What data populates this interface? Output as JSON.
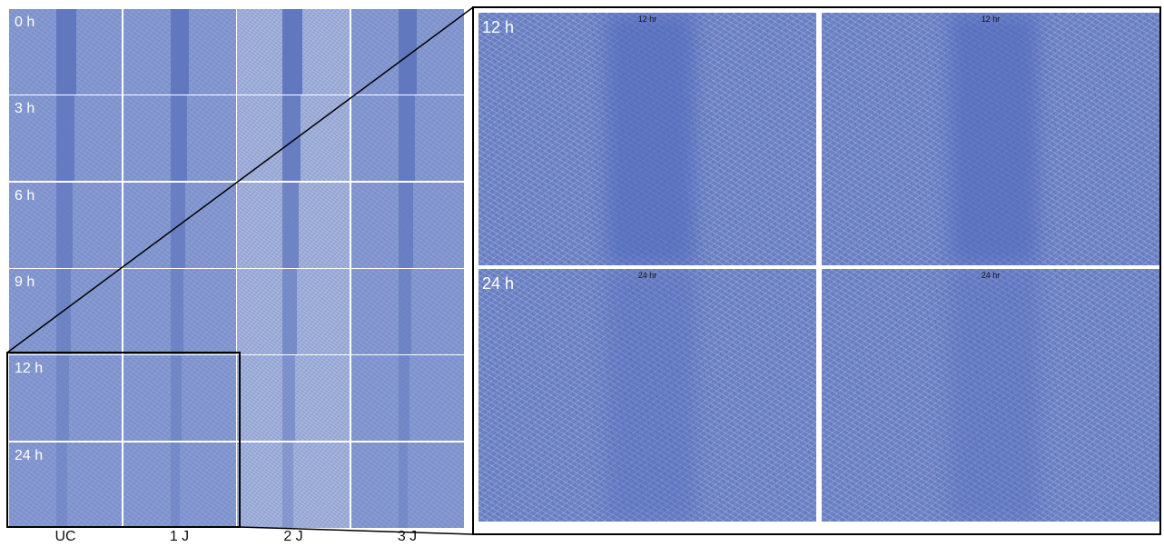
{
  "left_panel": {
    "row_labels": [
      "0 h",
      "3 h",
      "6 h",
      "9 h",
      "12 h",
      "24 h"
    ],
    "column_labels": [
      "UC",
      "1 J",
      "2 J",
      "3 J"
    ]
  },
  "right_panel": {
    "rows": [
      {
        "label": "12 h",
        "images": [
          {
            "caption": "12 hr"
          },
          {
            "caption": "12 hr"
          }
        ]
      },
      {
        "label": "24 h",
        "images": [
          {
            "caption": "24 hr"
          },
          {
            "caption": "24 hr"
          }
        ]
      }
    ]
  }
}
